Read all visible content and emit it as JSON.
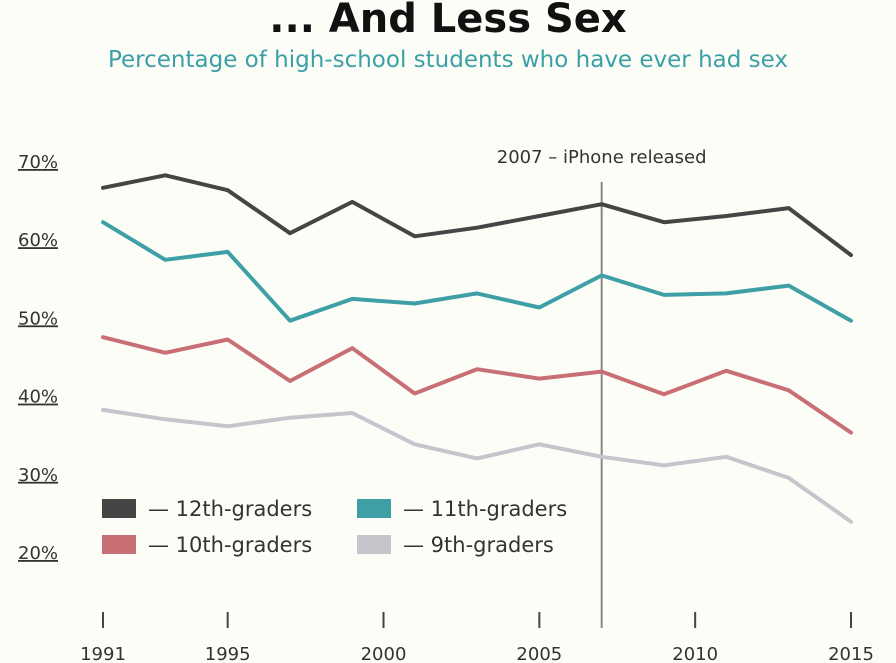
{
  "chart_data": {
    "type": "line",
    "title": "... And Less Sex",
    "subtitle": "Percentage of high-school students who have ever had sex",
    "ylim": [
      20,
      70
    ],
    "y_ticks": [
      "70%",
      "60%",
      "50%",
      "40%",
      "30%",
      "20%"
    ],
    "y_tick_values": [
      70,
      60,
      50,
      40,
      30,
      20
    ],
    "x_ticks": [
      "1991",
      "1995",
      "2000",
      "2005",
      "2010",
      "2015"
    ],
    "x_tick_values": [
      1991,
      1995,
      2000,
      2005,
      2010,
      2015
    ],
    "x": [
      1991,
      1993,
      1995,
      1997,
      1999,
      2001,
      2003,
      2005,
      2007,
      2009,
      2011,
      2013,
      2015
    ],
    "annotation": {
      "text": "2007 – iPhone released",
      "x": 2007
    },
    "legend_position": "bottom-left",
    "series": [
      {
        "name": "— 12th-graders",
        "color": "#454545",
        "values": [
          66.7,
          68.3,
          66.4,
          60.9,
          64.9,
          60.5,
          61.6,
          63.1,
          64.6,
          62.3,
          63.1,
          64.1,
          58.1
        ]
      },
      {
        "name": "— 11th-graders",
        "color": "#3f9fa7",
        "values": [
          62.3,
          57.5,
          58.5,
          49.7,
          52.5,
          51.9,
          53.2,
          51.4,
          55.5,
          53.0,
          53.2,
          54.2,
          49.7
        ]
      },
      {
        "name": "— 10th-graders",
        "color": "#c86f75",
        "values": [
          47.6,
          45.6,
          47.3,
          42.0,
          46.2,
          40.4,
          43.5,
          42.3,
          43.2,
          40.3,
          43.3,
          40.8,
          35.4
        ]
      },
      {
        "name": "— 9th-graders",
        "color": "#c5c5cb",
        "values": [
          38.3,
          37.1,
          36.2,
          37.3,
          37.9,
          33.9,
          32.1,
          33.9,
          32.3,
          31.2,
          32.3,
          29.6,
          24.0
        ]
      }
    ]
  }
}
